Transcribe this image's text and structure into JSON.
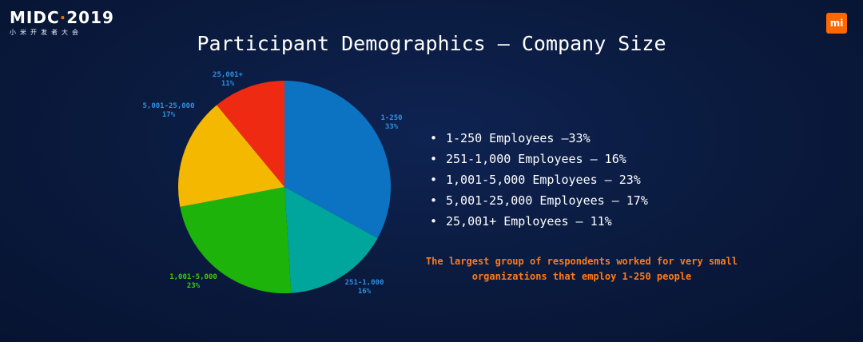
{
  "header": {
    "logo_text": "MIDC",
    "logo_dot": "·",
    "logo_year": "2019",
    "logo_subtitle": "小米开发者大会",
    "brand_badge": "mi"
  },
  "slide": {
    "title": "Participant Demographics  –  Company Size",
    "bullets": [
      "1-250 Employees  –33%",
      "251-1,000 Employees  –  16%",
      "1,001-5,000 Employees –  23%",
      "5,001-25,000 Employees  –  17%",
      "25,001+ Employees  –  11%"
    ],
    "note": "The largest group of respondents worked for very small\norganizations that employ 1-250 people"
  },
  "chart_data": {
    "type": "pie",
    "slices": [
      {
        "label": "1-250",
        "value": 33,
        "value_label": "33%",
        "color": "#0b73c2"
      },
      {
        "label": "251-1,000",
        "value": 16,
        "value_label": "16%",
        "color": "#00a69c"
      },
      {
        "label": "1,001-5,000",
        "value": 23,
        "value_label": "23%",
        "color": "#1eb30a"
      },
      {
        "label": "5,001-25,000",
        "value": 17,
        "value_label": "17%",
        "color": "#f5b800"
      },
      {
        "label": "25,001+",
        "value": 11,
        "value_label": "11%",
        "color": "#ee2a12"
      }
    ],
    "label_colors": [
      "#2f8fe0",
      "#2f8fe0",
      "#3ccc10",
      "#2f8fe0",
      "#2f8fe0"
    ],
    "colors": {
      "background": "#0a1a3d",
      "title": "#ffffff",
      "note": "#ff7a1a",
      "brand": "#ff6700"
    }
  }
}
